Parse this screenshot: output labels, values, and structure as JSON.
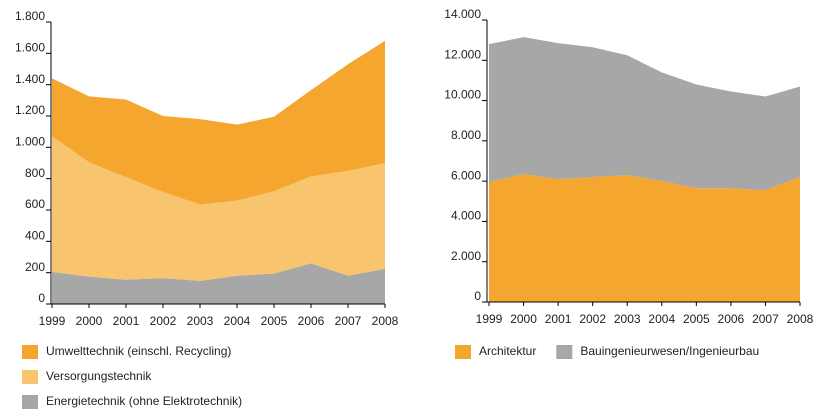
{
  "chart_data": [
    {
      "type": "area",
      "stacked": true,
      "categories": [
        "1999",
        "2000",
        "2001",
        "2002",
        "2003",
        "2004",
        "2005",
        "2006",
        "2007",
        "2008"
      ],
      "ylim": [
        0,
        1800
      ],
      "yticks": [
        0,
        200,
        400,
        600,
        800,
        {
          "value": 1000,
          "label": "1.000"
        },
        {
          "value": 1200,
          "label": "1.200"
        },
        {
          "value": 1400,
          "label": "1.400"
        },
        {
          "value": 1600,
          "label": "1.600"
        },
        {
          "value": 1800,
          "label": "1.800"
        }
      ],
      "series": [
        {
          "name": "Energietechnik (ohne Elektrotechnik)",
          "color": "#a7a7a7",
          "values": [
            205,
            175,
            155,
            165,
            148,
            180,
            195,
            260,
            180,
            225
          ]
        },
        {
          "name": "Versorgungstechnik",
          "color": "#f9c46e",
          "values": [
            865,
            730,
            655,
            550,
            487,
            480,
            525,
            555,
            670,
            675
          ]
        },
        {
          "name": "Umwelttechnik (einschl. Recycling)",
          "color": "#f4a62e",
          "values": [
            370,
            420,
            495,
            485,
            545,
            485,
            475,
            550,
            680,
            780
          ]
        }
      ]
    },
    {
      "type": "area",
      "stacked": true,
      "categories": [
        "1999",
        "2000",
        "2001",
        "2002",
        "2003",
        "2004",
        "2005",
        "2006",
        "2007",
        "2008"
      ],
      "ylim": [
        0,
        14000
      ],
      "yticks": [
        0,
        {
          "value": 2000,
          "label": "2.000"
        },
        {
          "value": 4000,
          "label": "4.000"
        },
        {
          "value": 6000,
          "label": "6.000"
        },
        {
          "value": 8000,
          "label": "8.000"
        },
        {
          "value": 10000,
          "label": "10.000"
        },
        {
          "value": 12000,
          "label": "12.000"
        },
        {
          "value": 14000,
          "label": "14.000"
        }
      ],
      "series": [
        {
          "name": "Architektur",
          "color": "#f4a62e",
          "values": [
            5950,
            6350,
            6100,
            6200,
            6300,
            6000,
            5650,
            5650,
            5550,
            6200
          ]
        },
        {
          "name": "Bauingenieurwesen/Ingenieurbau",
          "color": "#a7a7a7",
          "values": [
            6850,
            6800,
            6750,
            6450,
            5950,
            5400,
            5150,
            4800,
            4650,
            4500
          ]
        }
      ]
    }
  ]
}
